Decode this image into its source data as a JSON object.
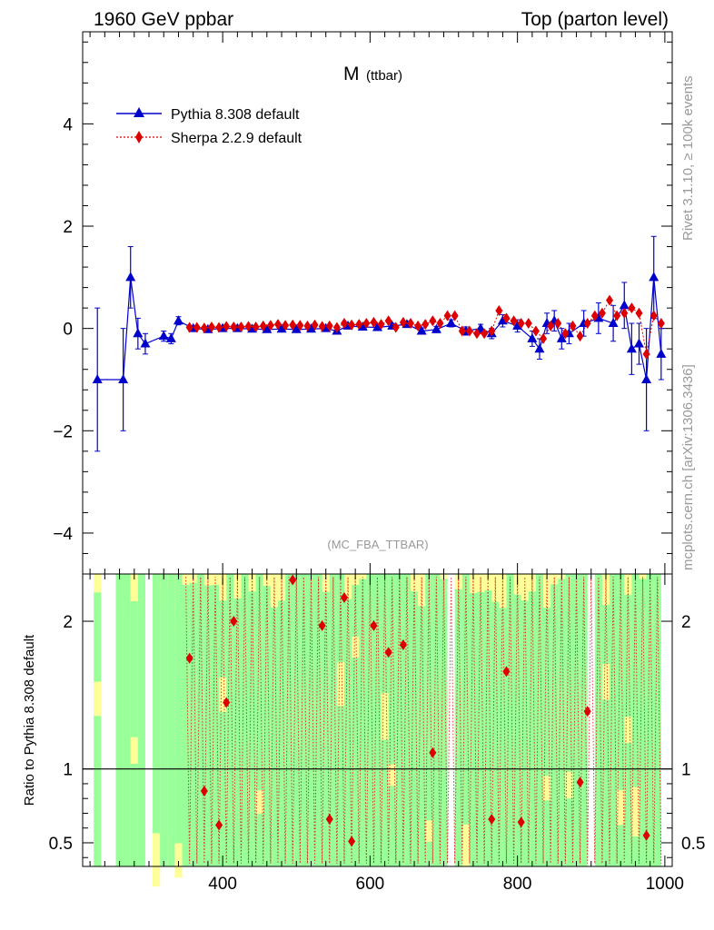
{
  "header": {
    "left": "1960 GeV ppbar",
    "right": "Top (parton level)"
  },
  "side_text": {
    "rivet": "Rivet 3.1.10, ≥ 100k events",
    "mcplots": "mcplots.cern.ch [arXiv:1306.3436]"
  },
  "chart_data": {
    "type": "line",
    "title": "M (ttbar)",
    "title_main": "M",
    "title_sub": "(ttbar)",
    "analysis": "(MC_FBA_TTBAR)",
    "xlim": [
      210,
      1010
    ],
    "ylim": [
      -4.8,
      5.8
    ],
    "x_ticks": [
      400,
      600,
      800,
      1000
    ],
    "y_ticks": [
      -4,
      -2,
      0,
      2,
      4
    ],
    "legend": {
      "placement": "top-left",
      "entries": [
        "Pythia 8.308 default",
        "Sherpa 2.2.9 default"
      ]
    },
    "colors": {
      "pythia": "#0000cc",
      "sherpa": "#dd0000",
      "band_green": "#99ff99",
      "band_yellow": "#ffff99"
    },
    "series": [
      {
        "name": "Pythia 8.308 default",
        "marker": "triangle",
        "points": [
          [
            230,
            -1.0,
            1.4
          ],
          [
            265,
            -1.0,
            1.0
          ],
          [
            275,
            1.0,
            0.6
          ],
          [
            285,
            -0.1,
            0.3
          ],
          [
            295,
            -0.3,
            0.2
          ],
          [
            320,
            -0.15,
            0.1
          ],
          [
            330,
            -0.2,
            0.1
          ],
          [
            340,
            0.15,
            0.08
          ],
          [
            360,
            0.0,
            0.05
          ],
          [
            380,
            -0.02,
            0.04
          ],
          [
            400,
            0.0,
            0.04
          ],
          [
            420,
            0.0,
            0.04
          ],
          [
            440,
            -0.01,
            0.04
          ],
          [
            460,
            -0.02,
            0.04
          ],
          [
            480,
            -0.01,
            0.04
          ],
          [
            500,
            -0.02,
            0.04
          ],
          [
            520,
            -0.01,
            0.04
          ],
          [
            540,
            0.0,
            0.05
          ],
          [
            555,
            -0.05,
            0.05
          ],
          [
            570,
            0.05,
            0.05
          ],
          [
            590,
            0.03,
            0.05
          ],
          [
            610,
            0.02,
            0.05
          ],
          [
            630,
            0.05,
            0.05
          ],
          [
            650,
            0.08,
            0.06
          ],
          [
            670,
            -0.05,
            0.06
          ],
          [
            690,
            -0.02,
            0.06
          ],
          [
            710,
            0.1,
            0.07
          ],
          [
            730,
            -0.05,
            0.08
          ],
          [
            750,
            0.0,
            0.08
          ],
          [
            765,
            -0.1,
            0.1
          ],
          [
            780,
            0.15,
            0.12
          ],
          [
            800,
            0.05,
            0.12
          ],
          [
            820,
            -0.2,
            0.15
          ],
          [
            830,
            -0.4,
            0.2
          ],
          [
            840,
            0.1,
            0.2
          ],
          [
            850,
            0.15,
            0.2
          ],
          [
            860,
            -0.2,
            0.2
          ],
          [
            870,
            -0.1,
            0.2
          ],
          [
            890,
            0.1,
            0.25
          ],
          [
            910,
            0.2,
            0.3
          ],
          [
            930,
            0.1,
            0.35
          ],
          [
            945,
            0.45,
            0.45
          ],
          [
            955,
            -0.4,
            0.5
          ],
          [
            965,
            -0.3,
            0.4
          ],
          [
            975,
            -1.0,
            1.0
          ],
          [
            985,
            1.0,
            0.8
          ],
          [
            995,
            -0.5,
            0.5
          ]
        ]
      },
      {
        "name": "Sherpa 2.2.9 default",
        "marker": "diamond",
        "points": [
          [
            355,
            0.02
          ],
          [
            365,
            0.02
          ],
          [
            375,
            0.01
          ],
          [
            385,
            0.03
          ],
          [
            395,
            0.02
          ],
          [
            405,
            0.04
          ],
          [
            415,
            0.03
          ],
          [
            425,
            0.03
          ],
          [
            435,
            0.04
          ],
          [
            445,
            0.03
          ],
          [
            455,
            0.05
          ],
          [
            465,
            0.06
          ],
          [
            475,
            0.08
          ],
          [
            485,
            0.06
          ],
          [
            495,
            0.07
          ],
          [
            505,
            0.06
          ],
          [
            515,
            0.05
          ],
          [
            525,
            0.07
          ],
          [
            535,
            0.04
          ],
          [
            545,
            0.05
          ],
          [
            555,
            0.02
          ],
          [
            565,
            0.1
          ],
          [
            575,
            0.07
          ],
          [
            585,
            0.08
          ],
          [
            595,
            0.1
          ],
          [
            605,
            0.12
          ],
          [
            615,
            0.08
          ],
          [
            625,
            0.15
          ],
          [
            635,
            0.02
          ],
          [
            645,
            0.12
          ],
          [
            655,
            0.1
          ],
          [
            665,
            0.05
          ],
          [
            675,
            0.08
          ],
          [
            685,
            0.15
          ],
          [
            695,
            0.1
          ],
          [
            705,
            0.25
          ],
          [
            715,
            0.25
          ],
          [
            725,
            -0.05
          ],
          [
            735,
            -0.05
          ],
          [
            745,
            -0.1
          ],
          [
            755,
            -0.1
          ],
          [
            765,
            -0.05
          ],
          [
            775,
            0.35
          ],
          [
            785,
            0.2
          ],
          [
            795,
            0.15
          ],
          [
            805,
            0.1
          ],
          [
            815,
            0.1
          ],
          [
            825,
            -0.05
          ],
          [
            835,
            -0.2
          ],
          [
            845,
            0.05
          ],
          [
            855,
            0.1
          ],
          [
            865,
            -0.1
          ],
          [
            875,
            0.05
          ],
          [
            885,
            -0.15
          ],
          [
            895,
            0.1
          ],
          [
            905,
            0.25
          ],
          [
            915,
            0.3
          ],
          [
            925,
            0.55
          ],
          [
            935,
            0.25
          ],
          [
            945,
            0.3
          ],
          [
            955,
            0.4
          ],
          [
            965,
            0.3
          ],
          [
            975,
            -0.5
          ],
          [
            985,
            0.25
          ],
          [
            995,
            0.1
          ]
        ]
      }
    ],
    "ratio": {
      "ylabel": "Ratio to Pythia 8.308 default",
      "ylim": [
        0.34,
        2.32
      ],
      "y_ticks": [
        0.5,
        1,
        2
      ],
      "y_tick_labels": [
        "0.5",
        "1",
        "2"
      ],
      "sherpa_ratio": [
        [
          355,
          1.75
        ],
        [
          375,
          0.85
        ],
        [
          395,
          0.62
        ],
        [
          405,
          1.45
        ],
        [
          415,
          2.0
        ],
        [
          495,
          2.28
        ],
        [
          535,
          1.97
        ],
        [
          545,
          0.66
        ],
        [
          565,
          2.16
        ],
        [
          575,
          0.51
        ],
        [
          605,
          1.97
        ],
        [
          625,
          1.79
        ],
        [
          645,
          1.84
        ],
        [
          685,
          1.11
        ],
        [
          765,
          0.66
        ],
        [
          785,
          1.66
        ],
        [
          805,
          0.64
        ],
        [
          885,
          0.91
        ],
        [
          895,
          1.39
        ],
        [
          975,
          0.55
        ]
      ]
    }
  }
}
